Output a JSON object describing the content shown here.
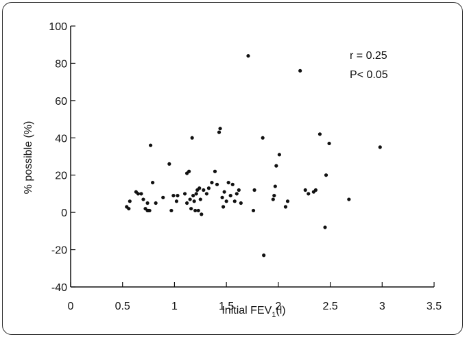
{
  "chart_data": {
    "type": "scatter",
    "xlabel": {
      "main": "Initial FEV",
      "sub": "1",
      "tail": "(l)"
    },
    "ylabel": "% possible (%)",
    "xlim": [
      0,
      3.5
    ],
    "ylim": [
      -40,
      100
    ],
    "x_ticks": [
      0,
      0.5,
      1,
      1.5,
      2,
      2.5,
      3,
      3.5
    ],
    "x_tick_labels": [
      "0",
      "0.5",
      "1",
      "1.5",
      "2",
      "2.5",
      "3",
      "3.5"
    ],
    "y_ticks": [
      -40,
      -20,
      0,
      20,
      40,
      60,
      80,
      100
    ],
    "y_tick_labels": [
      "-40",
      "-20",
      "0",
      "20",
      "40",
      "60",
      "80",
      "100"
    ],
    "grid": false,
    "legend": "none",
    "annotations": [
      "r = 0.25",
      "P< 0.05"
    ],
    "point_color": "#111111",
    "points": [
      [
        0.54,
        3
      ],
      [
        0.56,
        2
      ],
      [
        0.57,
        6
      ],
      [
        0.63,
        11
      ],
      [
        0.65,
        10
      ],
      [
        0.68,
        10
      ],
      [
        0.7,
        7
      ],
      [
        0.72,
        2
      ],
      [
        0.74,
        5
      ],
      [
        0.74,
        1
      ],
      [
        0.75,
        1
      ],
      [
        0.76,
        1
      ],
      [
        0.77,
        36
      ],
      [
        0.79,
        16
      ],
      [
        0.82,
        5
      ],
      [
        0.89,
        8
      ],
      [
        0.95,
        26
      ],
      [
        0.97,
        1
      ],
      [
        0.99,
        9
      ],
      [
        1.02,
        6
      ],
      [
        1.03,
        9
      ],
      [
        1.1,
        10
      ],
      [
        1.12,
        21
      ],
      [
        1.12,
        5
      ],
      [
        1.14,
        22
      ],
      [
        1.15,
        7
      ],
      [
        1.16,
        2
      ],
      [
        1.17,
        40
      ],
      [
        1.18,
        9
      ],
      [
        1.19,
        6
      ],
      [
        1.2,
        1
      ],
      [
        1.21,
        10
      ],
      [
        1.22,
        12
      ],
      [
        1.23,
        1
      ],
      [
        1.24,
        13
      ],
      [
        1.25,
        7
      ],
      [
        1.26,
        -1
      ],
      [
        1.28,
        12
      ],
      [
        1.31,
        10
      ],
      [
        1.33,
        13
      ],
      [
        1.36,
        16
      ],
      [
        1.39,
        22
      ],
      [
        1.41,
        15
      ],
      [
        1.43,
        43
      ],
      [
        1.44,
        45
      ],
      [
        1.46,
        8
      ],
      [
        1.47,
        3
      ],
      [
        1.48,
        11
      ],
      [
        1.5,
        6
      ],
      [
        1.52,
        16
      ],
      [
        1.54,
        9
      ],
      [
        1.56,
        15
      ],
      [
        1.58,
        6
      ],
      [
        1.6,
        10
      ],
      [
        1.62,
        12
      ],
      [
        1.64,
        5
      ],
      [
        1.71,
        84
      ],
      [
        1.76,
        1
      ],
      [
        1.77,
        12
      ],
      [
        1.85,
        40
      ],
      [
        1.86,
        -23
      ],
      [
        1.95,
        7
      ],
      [
        1.96,
        9
      ],
      [
        1.97,
        14
      ],
      [
        1.98,
        25
      ],
      [
        2.01,
        31
      ],
      [
        2.07,
        3
      ],
      [
        2.09,
        6
      ],
      [
        2.21,
        76
      ],
      [
        2.26,
        12
      ],
      [
        2.29,
        10
      ],
      [
        2.34,
        11
      ],
      [
        2.36,
        12
      ],
      [
        2.4,
        42
      ],
      [
        2.45,
        -8
      ],
      [
        2.46,
        20
      ],
      [
        2.49,
        37
      ],
      [
        2.68,
        7
      ],
      [
        2.98,
        35
      ]
    ]
  }
}
